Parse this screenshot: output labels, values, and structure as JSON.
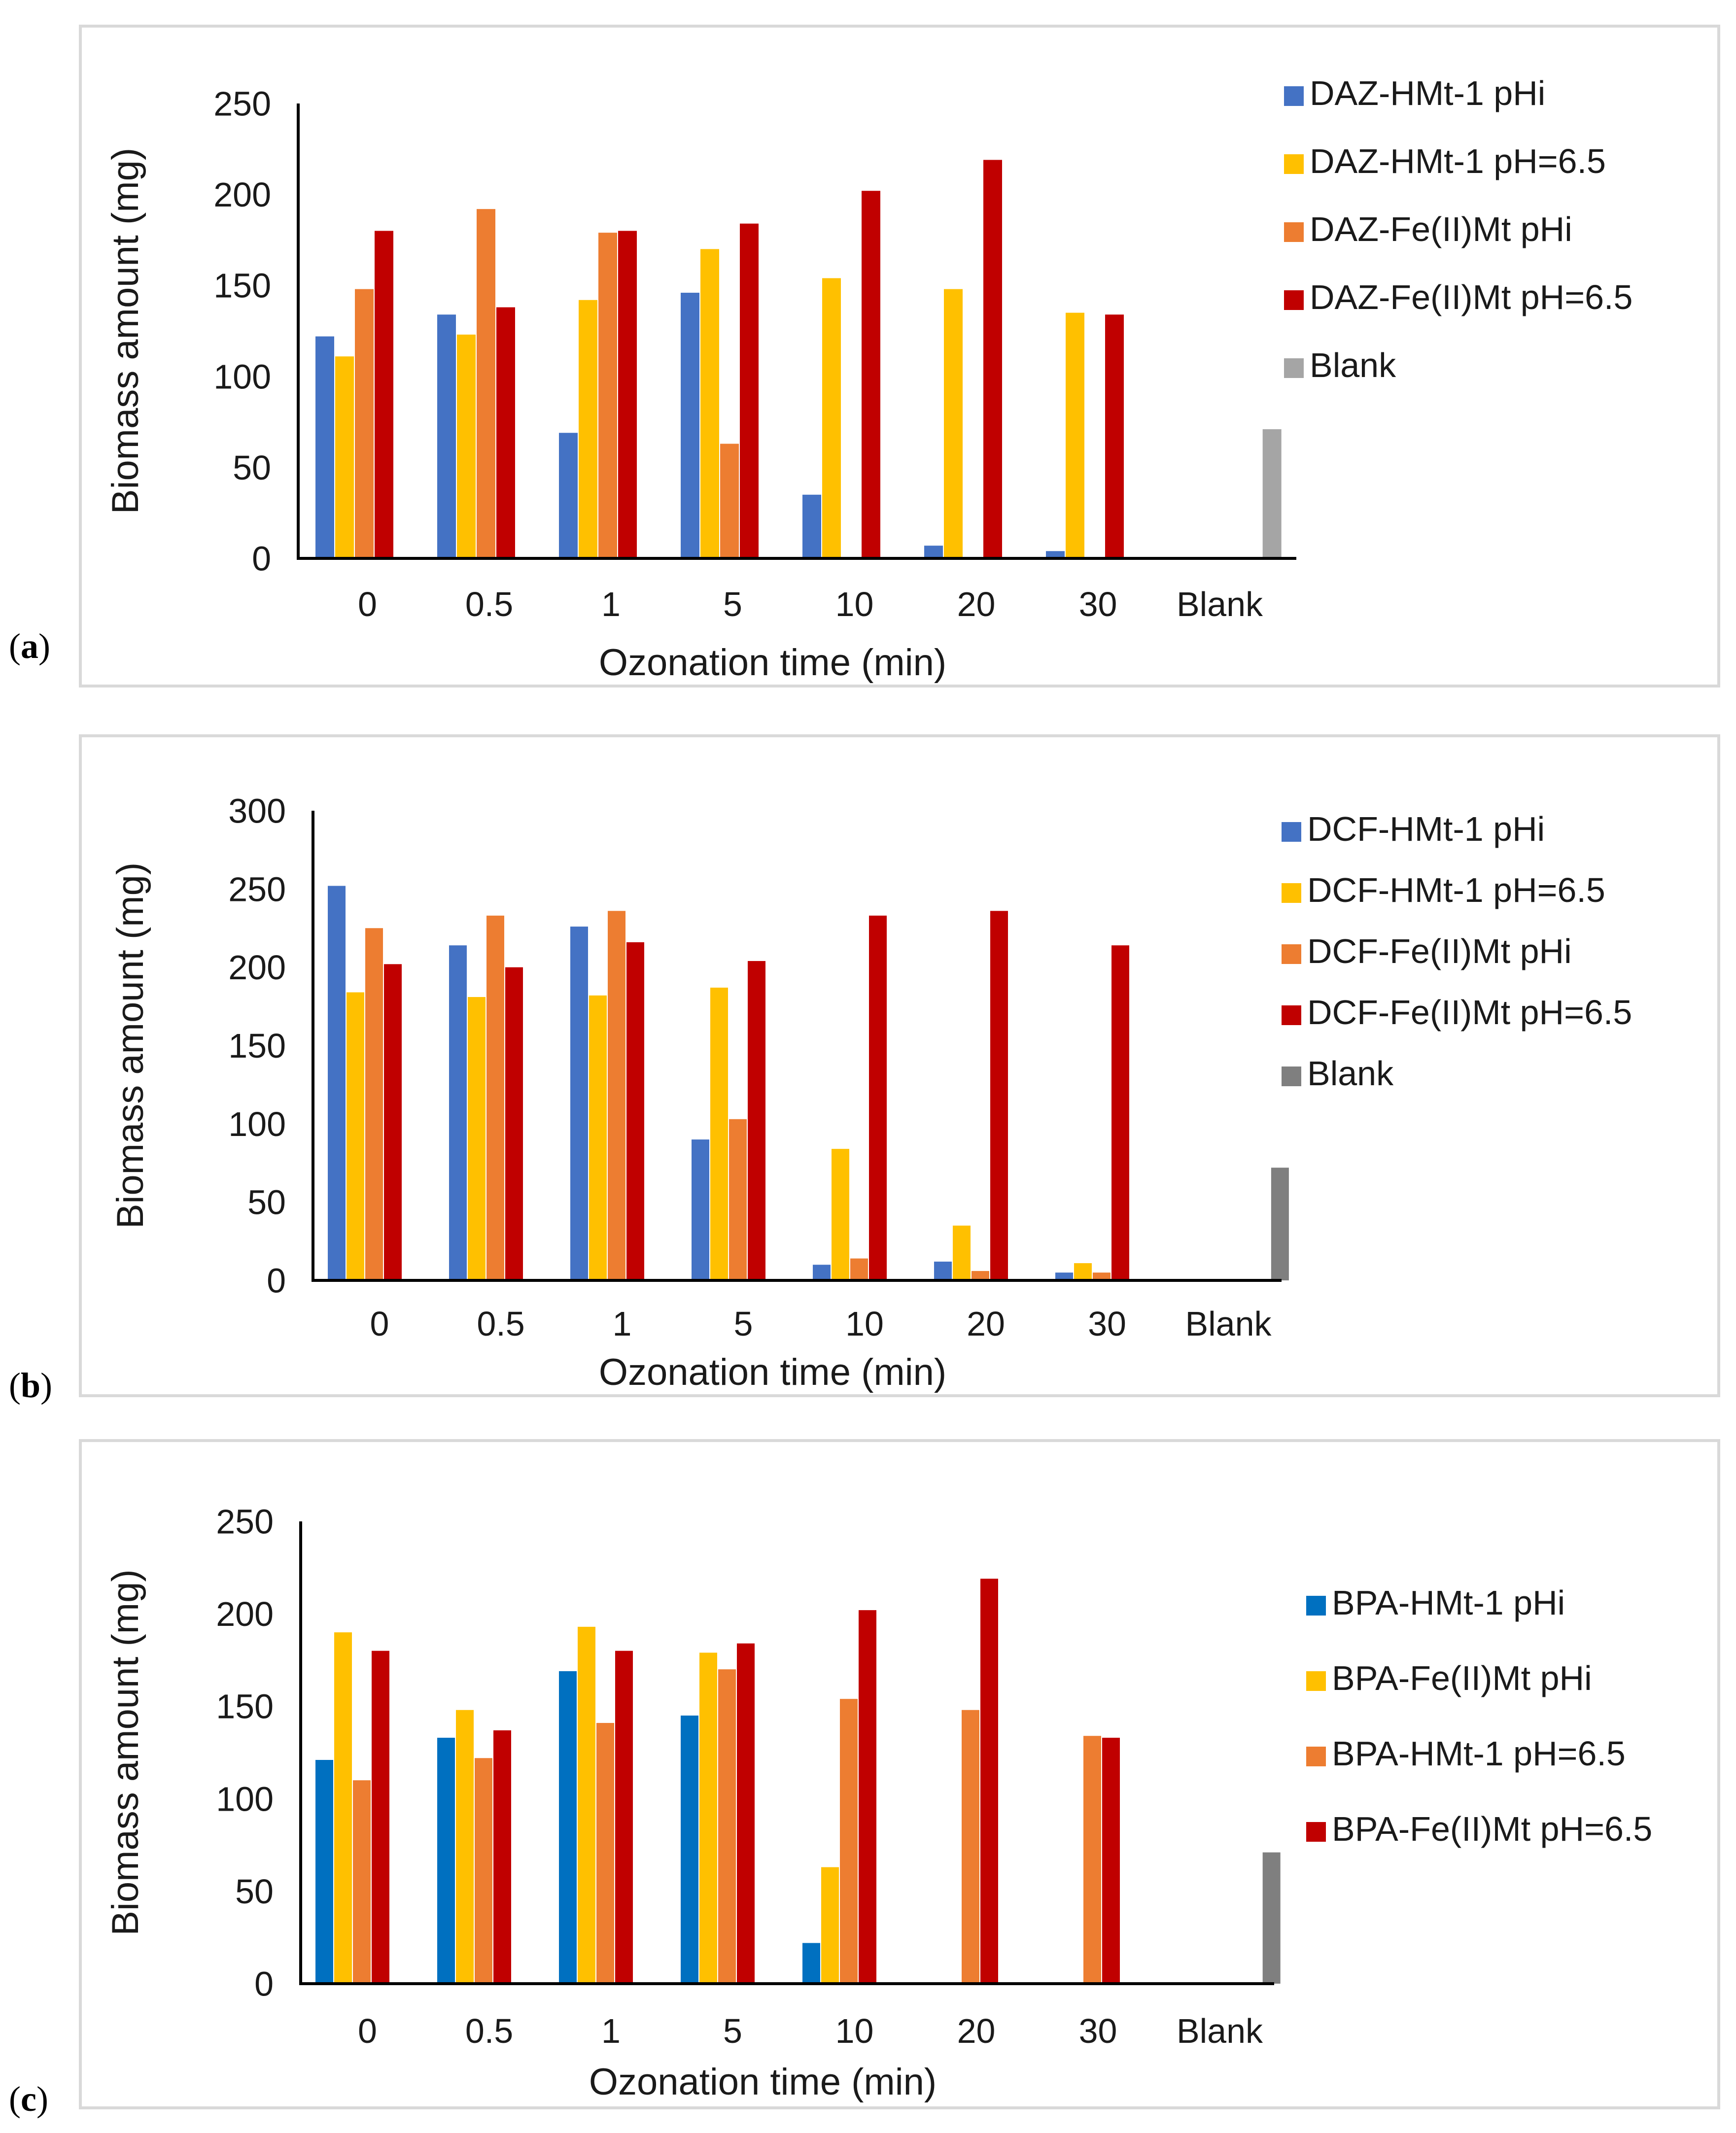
{
  "chart_data": [
    {
      "type": "bar",
      "panel_label": "a",
      "xlabel": "Ozonation time (min)",
      "ylabel": "Biomass amount (mg)",
      "ylim": [
        0,
        250
      ],
      "yticks": [
        0,
        50,
        100,
        150,
        200,
        250
      ],
      "categories": [
        "0",
        "0.5",
        "1",
        "5",
        "10",
        "20",
        "30",
        "Blank"
      ],
      "legend_position": "right",
      "series": [
        {
          "name": "DAZ-HMt-1 pHi",
          "color": "#4472c4",
          "values": [
            122,
            134,
            69,
            146,
            35,
            7,
            4,
            0
          ]
        },
        {
          "name": "DAZ-HMt-1 pH=6.5",
          "color": "#ffc000",
          "values": [
            111,
            123,
            142,
            170,
            154,
            148,
            135,
            0
          ]
        },
        {
          "name": "DAZ-Fe(II)Mt pHi",
          "color": "#ed7d31",
          "values": [
            148,
            192,
            179,
            63,
            0,
            0,
            0,
            0
          ]
        },
        {
          "name": "DAZ-Fe(II)Mt pH=6.5",
          "color": "#c00000",
          "values": [
            180,
            138,
            180,
            184,
            202,
            219,
            134,
            0
          ]
        },
        {
          "name": "Blank",
          "color": "#a5a5a5",
          "values": [
            0,
            0,
            0,
            0,
            0,
            0,
            0,
            71
          ]
        }
      ]
    },
    {
      "type": "bar",
      "panel_label": "b",
      "xlabel": "Ozonation time (min)",
      "ylabel": "Biomass amount (mg)",
      "ylim": [
        0,
        300
      ],
      "yticks": [
        0,
        50,
        100,
        150,
        200,
        250,
        300
      ],
      "categories": [
        "0",
        "0.5",
        "1",
        "5",
        "10",
        "20",
        "30",
        "Blank"
      ],
      "legend_position": "right",
      "series": [
        {
          "name": "DCF-HMt-1 pHi",
          "color": "#4472c4",
          "values": [
            252,
            214,
            226,
            90,
            10,
            12,
            5,
            0
          ]
        },
        {
          "name": "DCF-HMt-1 pH=6.5",
          "color": "#ffc000",
          "values": [
            184,
            181,
            182,
            187,
            84,
            35,
            11,
            0
          ]
        },
        {
          "name": "DCF-Fe(II)Mt pHi",
          "color": "#ed7d31",
          "values": [
            225,
            233,
            236,
            103,
            14,
            6,
            5,
            0
          ]
        },
        {
          "name": "DCF-Fe(II)Mt pH=6.5",
          "color": "#c00000",
          "values": [
            202,
            200,
            216,
            204,
            233,
            236,
            214,
            0
          ]
        },
        {
          "name": "Blank",
          "color": "#7f7f7f",
          "values": [
            0,
            0,
            0,
            0,
            0,
            0,
            0,
            72
          ]
        }
      ]
    },
    {
      "type": "bar",
      "panel_label": "c",
      "xlabel": "Ozonation time (min)",
      "ylabel": "Biomass amount (mg)",
      "ylim": [
        0,
        250
      ],
      "yticks": [
        0,
        50,
        100,
        150,
        200,
        250
      ],
      "categories": [
        "0",
        "0.5",
        "1",
        "5",
        "10",
        "20",
        "30",
        "Blank"
      ],
      "legend_position": "right",
      "series": [
        {
          "name": "BPA-HMt-1 pHi",
          "color": "#0070c0",
          "values": [
            121,
            133,
            169,
            145,
            22,
            0,
            0,
            0
          ],
          "legend": true
        },
        {
          "name": "BPA-Fe(II)Mt pHi",
          "color": "#ffc000",
          "values": [
            190,
            148,
            193,
            179,
            63,
            0,
            0,
            0
          ],
          "legend": true
        },
        {
          "name": "BPA-HMt-1 pH=6.5",
          "color": "#ed7d31",
          "values": [
            110,
            122,
            141,
            170,
            154,
            148,
            134,
            0
          ],
          "legend": true
        },
        {
          "name": "BPA-Fe(II)Mt pH=6.5",
          "color": "#c00000",
          "values": [
            180,
            137,
            180,
            184,
            202,
            219,
            133,
            0
          ],
          "legend": true
        },
        {
          "name": "Blank",
          "color": "#7f7f7f",
          "values": [
            0,
            0,
            0,
            0,
            0,
            0,
            0,
            71
          ],
          "legend": false
        }
      ]
    }
  ]
}
